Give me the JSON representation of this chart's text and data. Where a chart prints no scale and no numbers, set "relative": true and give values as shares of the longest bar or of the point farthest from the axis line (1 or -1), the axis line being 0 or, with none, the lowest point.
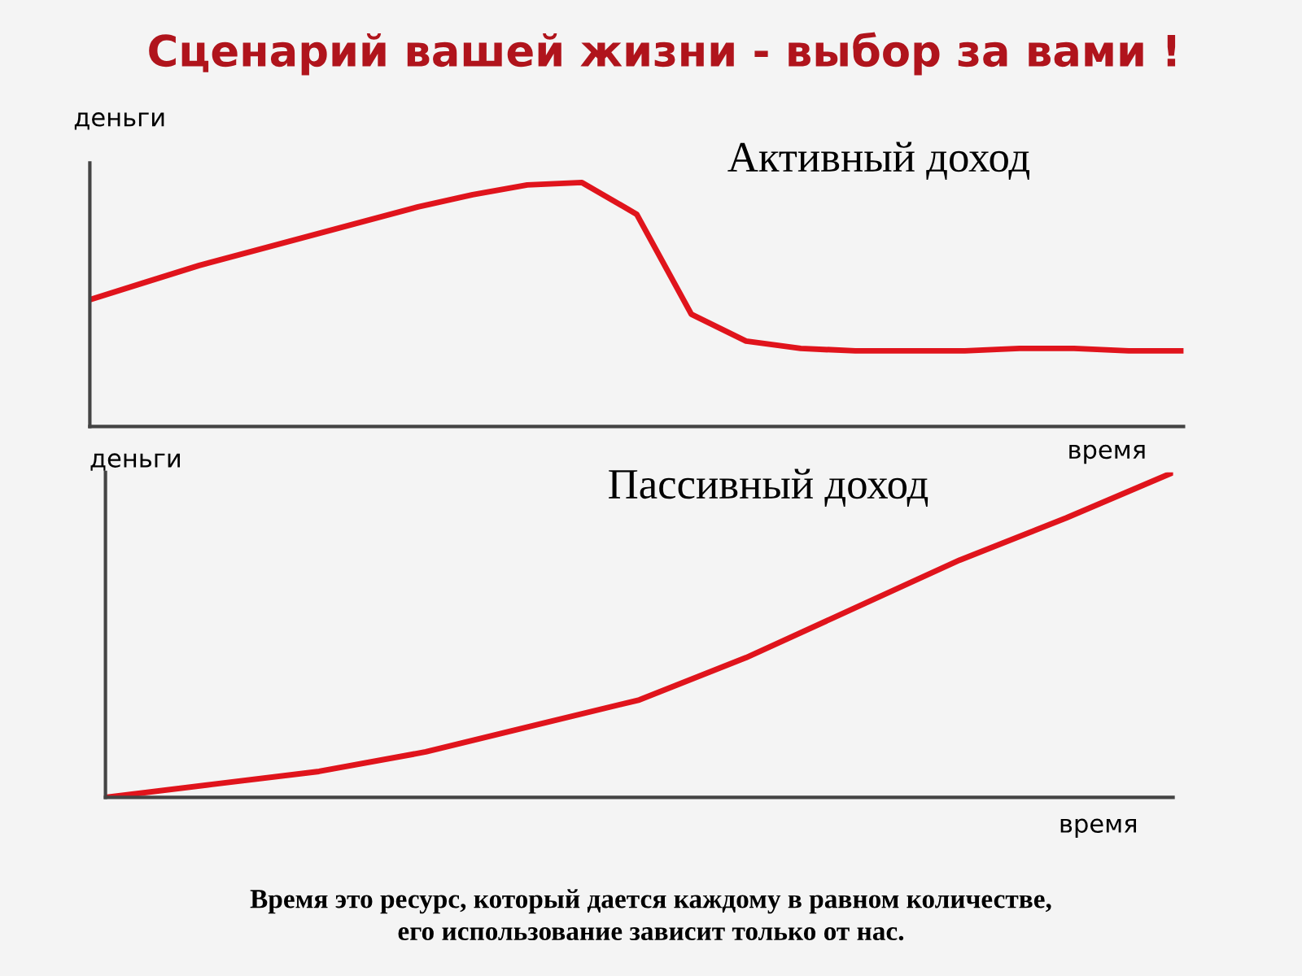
{
  "chart_data": [
    {
      "type": "line",
      "title": "Сценарий вашей жизни - выбор за вами !",
      "subtitle": "Активный доход",
      "xlabel": "время",
      "ylabel": "деньги",
      "relative": true,
      "grid": false,
      "legend": false,
      "categories": [
        null,
        null,
        null,
        null,
        null,
        null,
        null,
        null,
        null,
        null,
        null,
        null,
        null,
        null,
        null,
        null,
        null,
        null,
        null,
        null,
        null
      ],
      "series": [
        {
          "color": "#e0141c",
          "values": [
            0.52,
            0.59,
            0.66,
            0.72,
            0.78,
            0.84,
            0.9,
            0.95,
            0.99,
            1.0,
            0.87,
            0.46,
            0.35,
            0.32,
            0.31,
            0.31,
            0.31,
            0.32,
            0.32,
            0.31,
            0.31
          ]
        }
      ]
    },
    {
      "type": "line",
      "title": "Пассивный доход",
      "xlabel": "время",
      "ylabel": "деньги",
      "relative": true,
      "grid": false,
      "legend": false,
      "annotations": [
        "Время это ресурс, который дается каждому в равном количестве,\nего использование зависит только от нас."
      ],
      "categories": [
        null,
        null,
        null,
        null,
        null,
        null,
        null,
        null,
        null,
        null,
        null
      ],
      "series": [
        {
          "color": "#e0141c",
          "values": [
            0,
            0.04,
            0.08,
            0.14,
            0.22,
            0.3,
            0.43,
            0.58,
            0.73,
            0.86,
            1.0
          ]
        }
      ]
    }
  ]
}
